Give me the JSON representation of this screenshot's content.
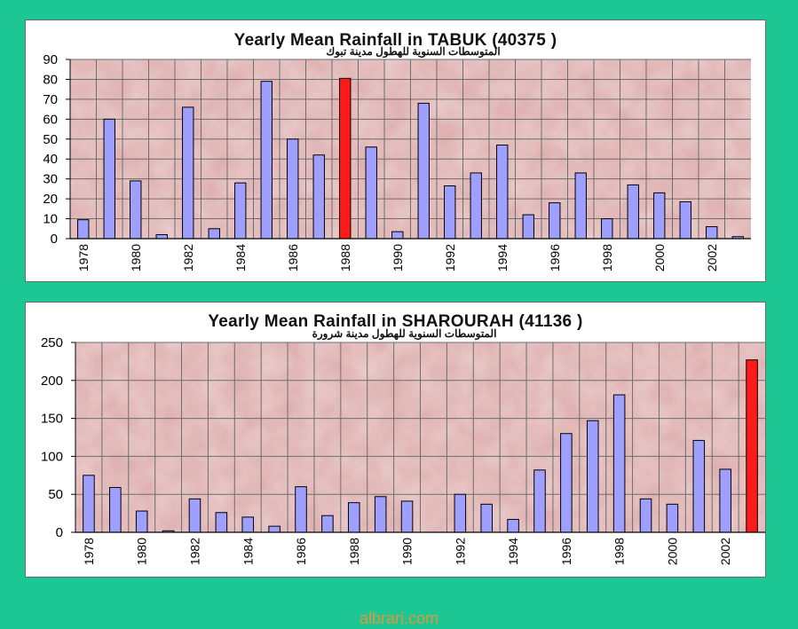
{
  "chart_data": [
    {
      "type": "bar",
      "title": "Yearly Mean Rainfall in TABUK (40375 )",
      "subtitle": "المتوسطات السنوية للهطول مدينة تبوك",
      "x": [
        1978,
        1979,
        1980,
        1981,
        1982,
        1983,
        1984,
        1985,
        1986,
        1987,
        1988,
        1989,
        1990,
        1991,
        1992,
        1993,
        1994,
        1995,
        1996,
        1997,
        1998,
        1999,
        2000,
        2001,
        2002,
        2003
      ],
      "x_tick_labels": [
        "1978",
        "1980",
        "1982",
        "1984",
        "1986",
        "1988",
        "1990",
        "1992",
        "1994",
        "1996",
        "1998",
        "2000",
        "2002"
      ],
      "values": [
        9.5,
        60,
        29,
        2,
        66,
        5,
        28,
        79,
        50,
        42,
        80.5,
        46,
        3.5,
        68,
        26.5,
        33,
        47,
        12,
        18,
        33,
        10,
        27,
        23,
        18.5,
        6,
        1
      ],
      "highlight_x": 1988,
      "ylim": [
        0,
        90
      ],
      "y_ticks": [
        0,
        10,
        20,
        30,
        40,
        50,
        60,
        70,
        80,
        90
      ],
      "xlabel": "",
      "ylabel": "",
      "grid": true,
      "legend": "none"
    },
    {
      "type": "bar",
      "title": "Yearly Mean Rainfall in SHAROURAH (41136 )",
      "subtitle": "المتوسطات السنوية للهطول مدينة شرورة",
      "x": [
        1978,
        1979,
        1980,
        1981,
        1982,
        1983,
        1984,
        1985,
        1986,
        1987,
        1988,
        1989,
        1990,
        1991,
        1992,
        1993,
        1994,
        1995,
        1996,
        1997,
        1998,
        1999,
        2000,
        2001,
        2002,
        2003
      ],
      "x_tick_labels": [
        "1978",
        "1980",
        "1982",
        "1984",
        "1986",
        "1988",
        "1990",
        "1992",
        "1994",
        "1996",
        "1998",
        "2000",
        "2002"
      ],
      "values": [
        75,
        59,
        28,
        2,
        44,
        26,
        20,
        8,
        60,
        22,
        39,
        47,
        41,
        null,
        50,
        37,
        17,
        82,
        130,
        147,
        181,
        44,
        37,
        121,
        83,
        227
      ],
      "highlight_x": 2003,
      "ylim": [
        0,
        250
      ],
      "y_ticks": [
        0,
        50,
        100,
        150,
        200,
        250
      ],
      "xlabel": "",
      "ylabel": "",
      "grid": true,
      "legend": "none"
    }
  ],
  "colors": {
    "background": "#1cc793",
    "plot_area": "#dfb1b1",
    "gridline": "#6e6e6e",
    "bar": "#9f9fff",
    "bar_highlight": "#ff1a1a",
    "bar_outline": "#000000",
    "watermark": "#e8933a"
  },
  "watermark": "albrari.com"
}
